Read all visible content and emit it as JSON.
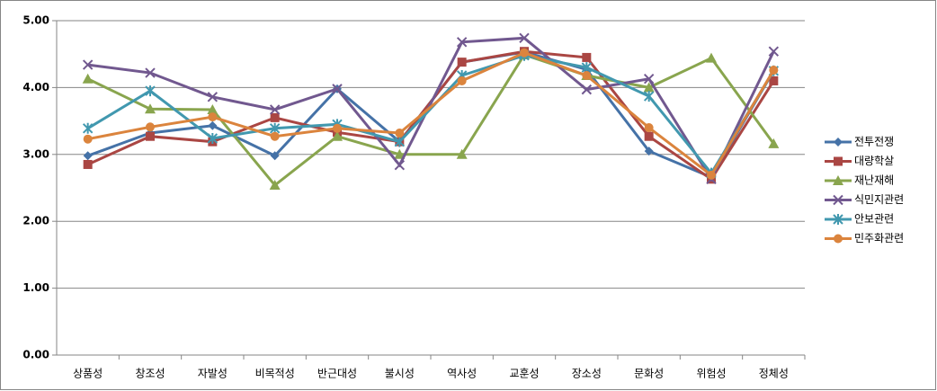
{
  "chart_data": {
    "type": "line",
    "categories": [
      "상품성",
      "창조성",
      "자발성",
      "비목적성",
      "반근대성",
      "불시성",
      "역사성",
      "교훈성",
      "장소성",
      "문화성",
      "위험성",
      "정체성"
    ],
    "series": [
      {
        "name": "전투전쟁",
        "color": "#4572a7",
        "marker": "diamond",
        "values": [
          2.98,
          3.32,
          3.43,
          2.98,
          3.98,
          3.19,
          4.38,
          4.53,
          4.27,
          3.05,
          2.66,
          4.25
        ]
      },
      {
        "name": "대량학살",
        "color": "#aa4643",
        "marker": "square",
        "values": [
          2.85,
          3.27,
          3.19,
          3.55,
          3.33,
          3.19,
          4.38,
          4.54,
          4.45,
          3.27,
          2.63,
          4.1
        ]
      },
      {
        "name": "재난재해",
        "color": "#89a54e",
        "marker": "triangle",
        "values": [
          4.13,
          3.68,
          3.67,
          2.54,
          3.27,
          3.0,
          3.0,
          4.49,
          4.18,
          4.0,
          4.44,
          3.16
        ]
      },
      {
        "name": "식민지관련",
        "color": "#71588f",
        "marker": "x",
        "values": [
          4.34,
          4.22,
          3.86,
          3.67,
          3.98,
          2.84,
          4.68,
          4.74,
          3.97,
          4.13,
          2.63,
          4.54
        ]
      },
      {
        "name": "안보관련",
        "color": "#4198af",
        "marker": "star",
        "values": [
          3.39,
          3.95,
          3.24,
          3.39,
          3.45,
          3.19,
          4.18,
          4.48,
          4.3,
          3.87,
          2.72,
          4.25
        ]
      },
      {
        "name": "민주화관련",
        "color": "#db843d",
        "marker": "circle",
        "values": [
          3.23,
          3.41,
          3.56,
          3.27,
          3.39,
          3.32,
          4.1,
          4.52,
          4.18,
          3.4,
          2.69,
          4.26
        ]
      }
    ],
    "ylim": [
      0,
      5
    ],
    "yticks": [
      {
        "value": 0,
        "label": "0.00"
      },
      {
        "value": 1,
        "label": "1.00"
      },
      {
        "value": 2,
        "label": "2.00"
      },
      {
        "value": 3,
        "label": "3.00"
      },
      {
        "value": 4,
        "label": "4.00"
      },
      {
        "value": 5,
        "label": "5.00"
      }
    ],
    "grid": true,
    "legend": "right"
  }
}
